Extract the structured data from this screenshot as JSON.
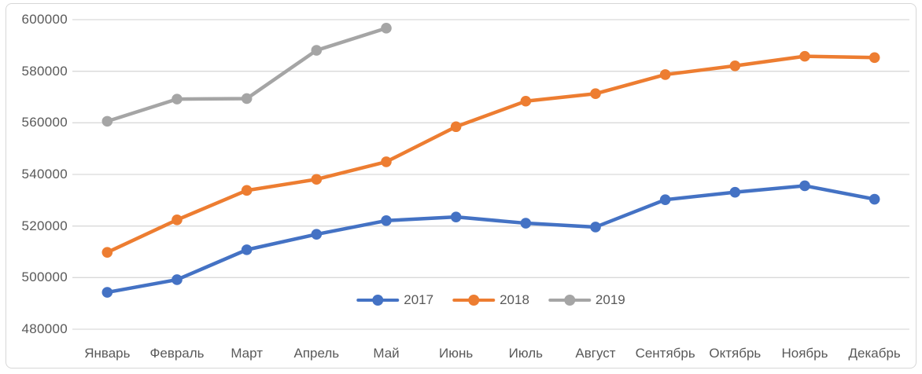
{
  "chart_data": {
    "type": "line",
    "title": "",
    "categories": [
      "Январь",
      "Февраль",
      "Март",
      "Апрель",
      "Май",
      "Июнь",
      "Июль",
      "Август",
      "Сентябрь",
      "Октябрь",
      "Ноябрь",
      "Декабрь"
    ],
    "series": [
      {
        "name": "2017",
        "color": "#4472C4",
        "values": [
          494300,
          499200,
          510800,
          516800,
          522100,
          523500,
          521100,
          519600,
          530200,
          533100,
          535600,
          530400
        ]
      },
      {
        "name": "2018",
        "color": "#ED7D31",
        "values": [
          509800,
          522400,
          533800,
          538100,
          544900,
          558500,
          568400,
          571300,
          578700,
          582100,
          585800,
          585300
        ]
      },
      {
        "name": "2019",
        "color": "#A5A5A5",
        "values": [
          560600,
          569200,
          569400,
          588100,
          596700
        ]
      }
    ],
    "ylim": [
      480000,
      600000
    ],
    "ytick_step": 20000,
    "y_tick_labels": [
      "600000",
      "580000",
      "560000",
      "540000",
      "520000",
      "500000",
      "480000"
    ],
    "xlabel": "",
    "ylabel": "",
    "grid": true,
    "legend_position": "bottom-center-inside",
    "axis_text_color": "#595959",
    "gridline_color": "#D9D9D9",
    "frame_border_color": "#D7D7D7"
  }
}
